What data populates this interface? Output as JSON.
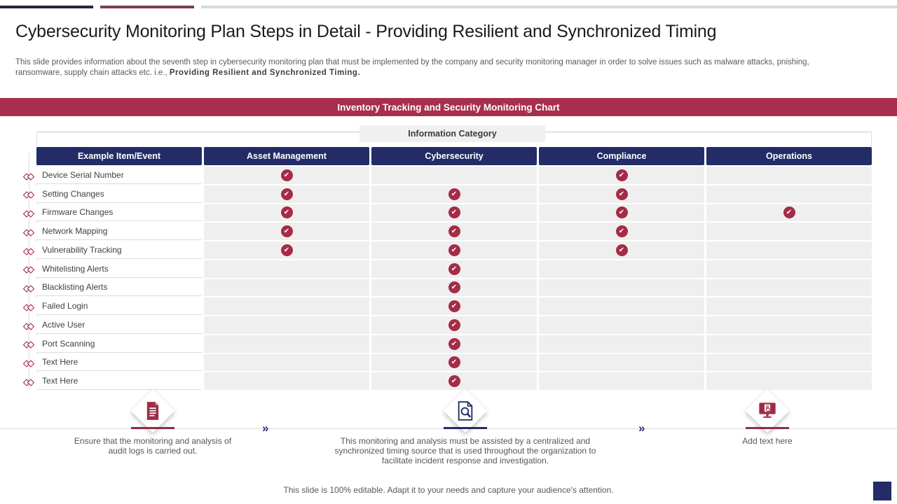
{
  "header": {
    "title": "Cybersecurity Monitoring Plan Steps in Detail - Providing Resilient and Synchronized Timing",
    "subtitle_regular": "This slide provides information about the seventh step in cybersecurity monitoring plan that must be implemented by the company and security monitoring manager in order to solve issues such as malware attacks, pnishing, ransomware, supply chain attacks etc. i.e., ",
    "subtitle_bold": "Providing Resilient and Synchronized Timing."
  },
  "banner": {
    "title": "Inventory Tracking and Security Monitoring Chart",
    "bg_color": "#a72e4e"
  },
  "table": {
    "group_header": "Information Category",
    "check_glyph": "✔",
    "columns": [
      "Example Item/Event",
      "Asset Management",
      "Cybersecurity",
      "Compliance",
      "Operations"
    ],
    "rows": [
      {
        "label": "Device Serial Number",
        "checks": [
          true,
          false,
          true,
          false
        ]
      },
      {
        "label": "Setting Changes",
        "checks": [
          true,
          true,
          true,
          false
        ]
      },
      {
        "label": "Firmware Changes",
        "checks": [
          true,
          true,
          true,
          true
        ]
      },
      {
        "label": "Network Mapping",
        "checks": [
          true,
          true,
          true,
          false
        ]
      },
      {
        "label": "Vulnerability Tracking",
        "checks": [
          true,
          true,
          true,
          false
        ]
      },
      {
        "label": "Whitelisting Alerts",
        "checks": [
          false,
          true,
          false,
          false
        ]
      },
      {
        "label": "Blacklisting Alerts",
        "checks": [
          false,
          true,
          false,
          false
        ]
      },
      {
        "label": "Failed Login",
        "checks": [
          false,
          true,
          false,
          false
        ]
      },
      {
        "label": "Active User",
        "checks": [
          false,
          true,
          false,
          false
        ]
      },
      {
        "label": "Port Scanning",
        "checks": [
          false,
          true,
          false,
          false
        ]
      },
      {
        "label": "Text Here",
        "checks": [
          false,
          true,
          false,
          false
        ]
      },
      {
        "label": "Text Here",
        "checks": [
          false,
          true,
          false,
          false
        ]
      }
    ]
  },
  "steps": {
    "chevron_glyph": "»",
    "items": [
      {
        "icon": "audit-log-document-icon",
        "accent": "#8e2d44",
        "text": "Ensure that the monitoring and analysis of audit logs is carried out."
      },
      {
        "icon": "document-search-icon",
        "accent": "#232c67",
        "text": "This monitoring and analysis must be assisted by a centralized and synchronized timing source that is used throughout the organization to facilitate incident response and investigation."
      },
      {
        "icon": "monitor-search-icon",
        "accent": "#8e2d44",
        "text": "Add text here"
      }
    ]
  },
  "footer": {
    "note": "This slide is 100% editable. Adapt it to your needs and capture your audience's attention."
  },
  "colors": {
    "navy": "#232c67",
    "crimson": "#a52b46",
    "cell_gray": "#efefef"
  }
}
